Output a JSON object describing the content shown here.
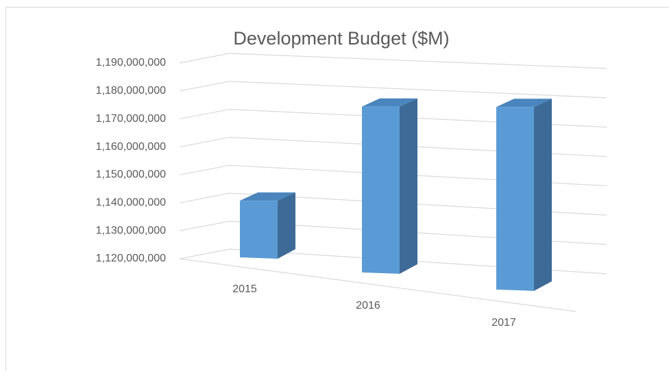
{
  "chart_data": {
    "type": "bar3d",
    "title": "Development Budget ($M)",
    "categories": [
      "2015",
      "2016",
      "2017"
    ],
    "values": [
      1138000000,
      1177000000,
      1177000000
    ],
    "color": "#5b9bd5",
    "ylim": [
      1120000000,
      1190000000
    ],
    "yticks": [
      {
        "value": 1120000000,
        "label": "1,120,000,000"
      },
      {
        "value": 1130000000,
        "label": "1,130,000,000"
      },
      {
        "value": 1140000000,
        "label": "1,140,000,000"
      },
      {
        "value": 1150000000,
        "label": "1,150,000,000"
      },
      {
        "value": 1160000000,
        "label": "1,160,000,000"
      },
      {
        "value": 1170000000,
        "label": "1,170,000,000"
      },
      {
        "value": 1180000000,
        "label": "1,180,000,000"
      },
      {
        "value": 1190000000,
        "label": "1,190,000,000"
      }
    ],
    "grid": true
  }
}
